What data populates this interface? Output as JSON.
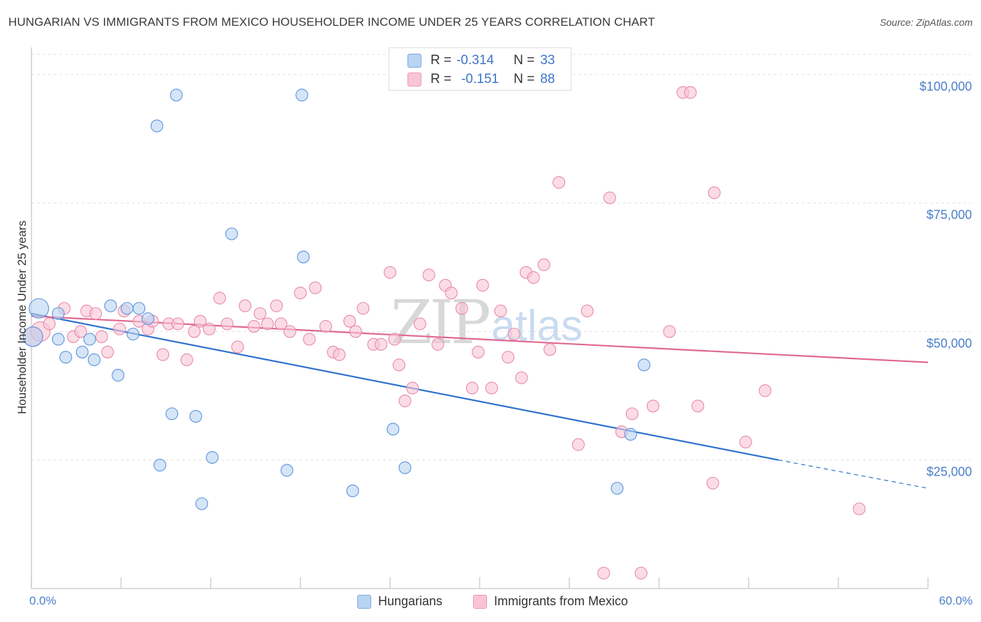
{
  "title": "HUNGARIAN VS IMMIGRANTS FROM MEXICO HOUSEHOLDER INCOME UNDER 25 YEARS CORRELATION CHART",
  "source": "Source: ZipAtlas.com",
  "watermark": {
    "zip": "ZIP",
    "atlas": "atlas"
  },
  "legend": {
    "r_label": "R =",
    "n_label": "N =",
    "rows": [
      {
        "series": "Hungarians",
        "r": "-0.314",
        "n": "33",
        "fill": "#b9d3f2",
        "stroke": "#7fa9de"
      },
      {
        "series": "Immigrants from Mexico",
        "r": "-0.151",
        "n": "88",
        "fill": "#f9c4d4",
        "stroke": "#ec9ab3"
      }
    ]
  },
  "chart_data": {
    "type": "scatter",
    "title": "HUNGARIAN VS IMMIGRANTS FROM MEXICO HOUSEHOLDER INCOME UNDER 25 YEARS CORRELATION CHART",
    "xlabel": "",
    "ylabel": "Householder Income Under 25 years",
    "x_unit": "%",
    "xlim": [
      0,
      60
    ],
    "ylim": [
      0,
      105000
    ],
    "x_tick_labels": [
      "0.0%",
      "60.0%"
    ],
    "y_ticks": [
      25000,
      50000,
      75000,
      100000
    ],
    "y_tick_labels": [
      "$25,000",
      "$50,000",
      "$75,000",
      "$100,000"
    ],
    "grid": true,
    "legend_position": "top-center",
    "series": [
      {
        "name": "Hungarians",
        "color": "#5b93dd",
        "fill": "#b9d3f2",
        "trend": {
          "x": [
            0,
            50
          ],
          "y": [
            53500,
            25000
          ],
          "dashed_extension_to": [
            60,
            19500
          ],
          "color": "#2f72cc"
        },
        "points": [
          {
            "x": 0.1,
            "y": 49000,
            "big": true
          },
          {
            "x": 0.5,
            "y": 54500,
            "big": true
          },
          {
            "x": 1.8,
            "y": 53500
          },
          {
            "x": 1.8,
            "y": 48500
          },
          {
            "x": 2.3,
            "y": 45000
          },
          {
            "x": 3.4,
            "y": 46000
          },
          {
            "x": 3.9,
            "y": 48500
          },
          {
            "x": 4.2,
            "y": 44500
          },
          {
            "x": 5.3,
            "y": 55000
          },
          {
            "x": 5.8,
            "y": 41500
          },
          {
            "x": 6.4,
            "y": 54500
          },
          {
            "x": 6.8,
            "y": 49500
          },
          {
            "x": 7.2,
            "y": 54500
          },
          {
            "x": 7.8,
            "y": 52500
          },
          {
            "x": 8.4,
            "y": 90000
          },
          {
            "x": 8.6,
            "y": 24000
          },
          {
            "x": 9.4,
            "y": 34000
          },
          {
            "x": 9.7,
            "y": 96000
          },
          {
            "x": 11.0,
            "y": 33500
          },
          {
            "x": 11.4,
            "y": 16500
          },
          {
            "x": 12.1,
            "y": 25500
          },
          {
            "x": 13.4,
            "y": 69000
          },
          {
            "x": 17.1,
            "y": 23000
          },
          {
            "x": 18.1,
            "y": 96000
          },
          {
            "x": 18.2,
            "y": 64500
          },
          {
            "x": 21.5,
            "y": 19000
          },
          {
            "x": 24.2,
            "y": 31000
          },
          {
            "x": 25.0,
            "y": 23500
          },
          {
            "x": 39.2,
            "y": 19500
          },
          {
            "x": 40.1,
            "y": 30000
          },
          {
            "x": 41.0,
            "y": 43500
          }
        ]
      },
      {
        "name": "Immigrants from Mexico",
        "color": "#e88aa8",
        "fill": "#f9c4d4",
        "trend": {
          "x": [
            0,
            60
          ],
          "y": [
            53000,
            44000
          ],
          "color": "#e0688f"
        },
        "points": [
          {
            "x": 0.1,
            "y": 49000,
            "big": true
          },
          {
            "x": 0.6,
            "y": 50000,
            "big": true
          },
          {
            "x": 1.2,
            "y": 51500
          },
          {
            "x": 2.2,
            "y": 54500
          },
          {
            "x": 2.8,
            "y": 49000
          },
          {
            "x": 3.3,
            "y": 50000
          },
          {
            "x": 3.7,
            "y": 54000
          },
          {
            "x": 4.3,
            "y": 53500
          },
          {
            "x": 4.7,
            "y": 49000
          },
          {
            "x": 5.1,
            "y": 46000
          },
          {
            "x": 5.9,
            "y": 50500
          },
          {
            "x": 6.2,
            "y": 54000
          },
          {
            "x": 7.2,
            "y": 52000
          },
          {
            "x": 7.8,
            "y": 50500
          },
          {
            "x": 8.1,
            "y": 52000
          },
          {
            "x": 8.8,
            "y": 45500
          },
          {
            "x": 9.2,
            "y": 51500
          },
          {
            "x": 9.8,
            "y": 51500
          },
          {
            "x": 10.4,
            "y": 44500
          },
          {
            "x": 10.9,
            "y": 50000
          },
          {
            "x": 11.3,
            "y": 52000
          },
          {
            "x": 11.9,
            "y": 50500
          },
          {
            "x": 12.6,
            "y": 56500
          },
          {
            "x": 13.1,
            "y": 51500
          },
          {
            "x": 13.8,
            "y": 47000
          },
          {
            "x": 14.3,
            "y": 55000
          },
          {
            "x": 14.9,
            "y": 51000
          },
          {
            "x": 15.3,
            "y": 53500
          },
          {
            "x": 15.8,
            "y": 51500
          },
          {
            "x": 16.4,
            "y": 55000
          },
          {
            "x": 16.7,
            "y": 51500
          },
          {
            "x": 17.3,
            "y": 50000
          },
          {
            "x": 18.0,
            "y": 57500
          },
          {
            "x": 18.6,
            "y": 48500
          },
          {
            "x": 19.0,
            "y": 58500
          },
          {
            "x": 19.7,
            "y": 51000
          },
          {
            "x": 20.2,
            "y": 46000
          },
          {
            "x": 20.6,
            "y": 45500
          },
          {
            "x": 21.3,
            "y": 52000
          },
          {
            "x": 21.7,
            "y": 50000
          },
          {
            "x": 22.2,
            "y": 54500
          },
          {
            "x": 22.9,
            "y": 47500
          },
          {
            "x": 23.4,
            "y": 47500
          },
          {
            "x": 24.0,
            "y": 61500
          },
          {
            "x": 24.3,
            "y": 48500
          },
          {
            "x": 24.6,
            "y": 43500
          },
          {
            "x": 25.0,
            "y": 36500
          },
          {
            "x": 25.5,
            "y": 39000
          },
          {
            "x": 26.0,
            "y": 51500
          },
          {
            "x": 26.6,
            "y": 61000
          },
          {
            "x": 27.2,
            "y": 47500
          },
          {
            "x": 27.7,
            "y": 59000
          },
          {
            "x": 28.1,
            "y": 57500
          },
          {
            "x": 28.8,
            "y": 54500
          },
          {
            "x": 29.5,
            "y": 39000
          },
          {
            "x": 29.9,
            "y": 46000
          },
          {
            "x": 30.2,
            "y": 59000
          },
          {
            "x": 30.8,
            "y": 39000
          },
          {
            "x": 31.4,
            "y": 54000
          },
          {
            "x": 31.9,
            "y": 45000
          },
          {
            "x": 32.3,
            "y": 49500
          },
          {
            "x": 32.8,
            "y": 41000
          },
          {
            "x": 33.1,
            "y": 61500
          },
          {
            "x": 33.6,
            "y": 60500
          },
          {
            "x": 34.3,
            "y": 63000
          },
          {
            "x": 34.7,
            "y": 46500
          },
          {
            "x": 35.3,
            "y": 79000
          },
          {
            "x": 36.6,
            "y": 28000
          },
          {
            "x": 37.2,
            "y": 54000
          },
          {
            "x": 38.3,
            "y": 3000
          },
          {
            "x": 38.7,
            "y": 76000
          },
          {
            "x": 39.5,
            "y": 30500
          },
          {
            "x": 40.2,
            "y": 34000
          },
          {
            "x": 40.8,
            "y": 3000
          },
          {
            "x": 41.6,
            "y": 35500
          },
          {
            "x": 42.7,
            "y": 50000
          },
          {
            "x": 43.6,
            "y": 96500
          },
          {
            "x": 44.1,
            "y": 96500
          },
          {
            "x": 44.6,
            "y": 35500
          },
          {
            "x": 45.6,
            "y": 20500
          },
          {
            "x": 45.7,
            "y": 77000
          },
          {
            "x": 47.8,
            "y": 28500
          },
          {
            "x": 49.1,
            "y": 38500
          },
          {
            "x": 55.4,
            "y": 15500
          }
        ]
      }
    ]
  },
  "x_axis": {
    "left_label": "0.0%",
    "right_label": "60.0%"
  }
}
